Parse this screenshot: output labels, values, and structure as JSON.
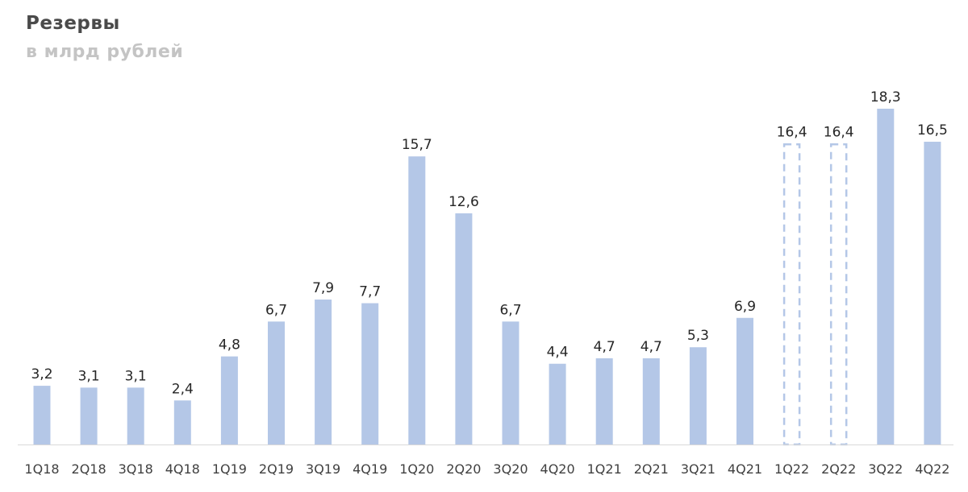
{
  "chart_data": {
    "type": "bar",
    "title": "Резервы",
    "subtitle": "в млрд рублей",
    "categories": [
      "1Q18",
      "2Q18",
      "3Q18",
      "4Q18",
      "1Q19",
      "2Q19",
      "3Q19",
      "4Q19",
      "1Q20",
      "2Q20",
      "3Q20",
      "4Q20",
      "1Q21",
      "2Q21",
      "3Q21",
      "4Q21",
      "1Q22",
      "2Q22",
      "3Q22",
      "4Q22"
    ],
    "values": [
      3.2,
      3.1,
      3.1,
      2.4,
      4.8,
      6.7,
      7.9,
      7.7,
      15.7,
      12.6,
      6.7,
      4.4,
      4.7,
      4.7,
      5.3,
      6.9,
      16.4,
      16.4,
      18.3,
      16.5
    ],
    "labels": [
      "3,2",
      "3,1",
      "3,1",
      "2,4",
      "4,8",
      "6,7",
      "7,9",
      "7,7",
      "15,7",
      "12,6",
      "6,7",
      "4,4",
      "4,7",
      "4,7",
      "5,3",
      "6,9",
      "16,4",
      "16,4",
      "18,3",
      "16,5"
    ],
    "style": [
      "solid",
      "solid",
      "solid",
      "solid",
      "solid",
      "solid",
      "solid",
      "solid",
      "solid",
      "solid",
      "solid",
      "solid",
      "solid",
      "solid",
      "solid",
      "solid",
      "dashed",
      "dashed",
      "solid",
      "solid"
    ],
    "ylim": [
      0,
      18.3
    ],
    "xlabel": "",
    "ylabel": "",
    "grid": false,
    "colors": {
      "bar": "#b4c7e7",
      "dashed_outline": "#b4c7e7",
      "axis": "#d9d9d9"
    }
  }
}
